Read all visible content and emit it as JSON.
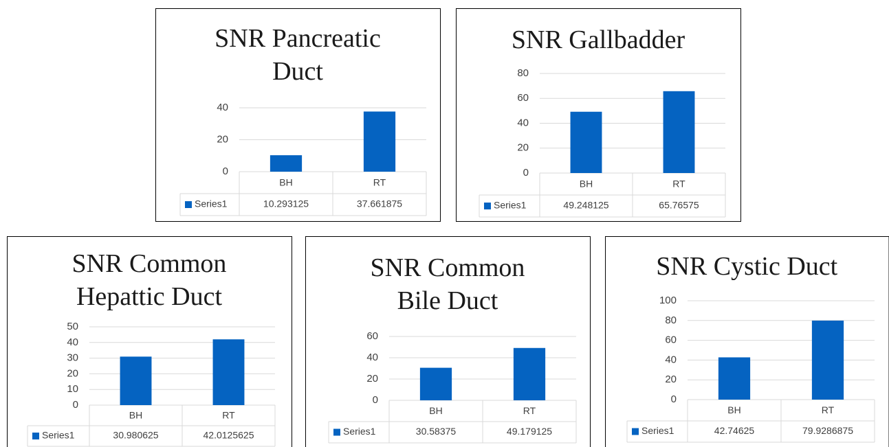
{
  "chart_data": [
    {
      "type": "bar",
      "title": "SNR Pancreatic Duct",
      "categories": [
        "BH",
        "RT"
      ],
      "series": [
        {
          "name": "Series1",
          "color": "#0563c1",
          "values": [
            10.293125,
            37.661875
          ]
        }
      ],
      "ylim": [
        0,
        40
      ],
      "yticks": [
        0,
        20,
        40
      ],
      "grid": true
    },
    {
      "type": "bar",
      "title": "SNR Gallbadder",
      "categories": [
        "BH",
        "RT"
      ],
      "series": [
        {
          "name": "Series1",
          "color": "#0563c1",
          "values": [
            49.248125,
            65.76575
          ]
        }
      ],
      "ylim": [
        0,
        80
      ],
      "yticks": [
        0,
        20,
        40,
        60,
        80
      ],
      "grid": true
    },
    {
      "type": "bar",
      "title": "SNR Common Hepattic Duct",
      "categories": [
        "BH",
        "RT"
      ],
      "series": [
        {
          "name": "Series1",
          "color": "#0563c1",
          "values": [
            30.980625,
            42.0125625
          ]
        }
      ],
      "ylim": [
        0,
        50
      ],
      "yticks": [
        0,
        10,
        20,
        30,
        40,
        50
      ],
      "grid": true
    },
    {
      "type": "bar",
      "title": "SNR Common Bile Duct",
      "categories": [
        "BH",
        "RT"
      ],
      "series": [
        {
          "name": "Series1",
          "color": "#0563c1",
          "values": [
            30.58375,
            49.179125
          ]
        }
      ],
      "ylim": [
        0,
        60
      ],
      "yticks": [
        0,
        20,
        40,
        60
      ],
      "grid": true
    },
    {
      "type": "bar",
      "title": "SNR Cystic Duct",
      "categories": [
        "BH",
        "RT"
      ],
      "series": [
        {
          "name": "Series1",
          "color": "#0563c1",
          "values": [
            42.74625,
            79.9286875
          ]
        }
      ],
      "ylim": [
        0,
        100
      ],
      "yticks": [
        0,
        20,
        40,
        60,
        80,
        100
      ],
      "grid": true
    }
  ]
}
